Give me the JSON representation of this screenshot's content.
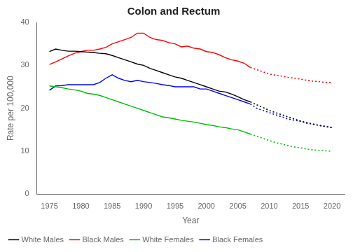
{
  "chart_data": {
    "type": "line",
    "title": "Colon and Rectum",
    "x_label": "Year",
    "y_label": "Rate per 100,000",
    "xlim": [
      1973,
      2022
    ],
    "ylim": [
      0,
      40
    ],
    "xticks": [
      1975,
      1980,
      1985,
      1990,
      1995,
      2000,
      2005,
      2010,
      2015,
      2020
    ],
    "yticks": [
      0,
      10,
      20,
      30,
      40
    ],
    "grid": false,
    "legend": "lower left",
    "series": [
      {
        "name": "White Males",
        "color": "#000000",
        "line_style": "solid",
        "x": [
          1975,
          1976,
          1977,
          1978,
          1979,
          1980,
          1981,
          1982,
          1983,
          1984,
          1985,
          1986,
          1987,
          1988,
          1989,
          1990,
          1991,
          1992,
          1993,
          1994,
          1995,
          1996,
          1997,
          1998,
          1999,
          2000,
          2001,
          2002,
          2003,
          2004,
          2005,
          2006,
          2007
        ],
        "values": [
          33.2,
          33.8,
          33.5,
          33.3,
          33.3,
          33.2,
          33.1,
          33.0,
          32.8,
          32.7,
          32.3,
          31.8,
          31.3,
          30.8,
          30.3,
          30.0,
          29.3,
          28.8,
          28.3,
          27.8,
          27.3,
          27.0,
          26.5,
          26.0,
          25.5,
          25.0,
          24.5,
          24.0,
          23.8,
          23.3,
          22.7,
          22.0,
          21.5
        ]
      },
      {
        "color": "#000000",
        "line_style": "dotted",
        "x": [
          2007,
          2008,
          2009,
          2010,
          2011,
          2012,
          2013,
          2014,
          2015,
          2016,
          2017,
          2018,
          2019,
          2020
        ],
        "values": [
          21.5,
          20.8,
          20.2,
          19.5,
          19.0,
          18.5,
          18.0,
          17.5,
          17.0,
          16.7,
          16.3,
          16.0,
          15.7,
          15.5
        ]
      },
      {
        "name": "Black Males",
        "color": "#FF0000",
        "line_style": "solid",
        "x": [
          1975,
          1976,
          1977,
          1978,
          1979,
          1980,
          1981,
          1982,
          1983,
          1984,
          1985,
          1986,
          1987,
          1988,
          1989,
          1990,
          1991,
          1992,
          1993,
          1994,
          1995,
          1996,
          1997,
          1998,
          1999,
          2000,
          2001,
          2002,
          2003,
          2004,
          2005,
          2006,
          2007
        ],
        "values": [
          30.2,
          30.8,
          31.5,
          32.2,
          32.8,
          33.2,
          33.5,
          33.5,
          33.8,
          34.2,
          35.0,
          35.5,
          36.0,
          36.5,
          37.5,
          37.5,
          36.5,
          36.0,
          35.8,
          35.3,
          35.0,
          34.3,
          34.5,
          34.0,
          33.8,
          33.2,
          33.0,
          32.5,
          31.8,
          31.3,
          31.0,
          30.5,
          29.5
        ]
      },
      {
        "color": "#FF0000",
        "line_style": "dotted",
        "x": [
          2007,
          2008,
          2009,
          2010,
          2011,
          2012,
          2013,
          2014,
          2015,
          2016,
          2017,
          2018,
          2019,
          2020
        ],
        "values": [
          29.5,
          29.0,
          28.5,
          28.0,
          27.7,
          27.5,
          27.2,
          27.0,
          26.8,
          26.5,
          26.3,
          26.2,
          26.0,
          26.0
        ]
      },
      {
        "name": "White Females",
        "color": "#00BB00",
        "line_style": "solid",
        "x": [
          1975,
          1976,
          1977,
          1978,
          1979,
          1980,
          1981,
          1982,
          1983,
          1984,
          1985,
          1986,
          1987,
          1988,
          1989,
          1990,
          1991,
          1992,
          1993,
          1994,
          1995,
          1996,
          1997,
          1998,
          1999,
          2000,
          2001,
          2002,
          2003,
          2004,
          2005,
          2006,
          2007
        ],
        "values": [
          25.2,
          25.0,
          24.8,
          24.5,
          24.3,
          24.0,
          23.5,
          23.3,
          23.0,
          22.5,
          22.0,
          21.5,
          21.0,
          20.5,
          20.0,
          19.5,
          19.0,
          18.5,
          18.0,
          17.8,
          17.5,
          17.2,
          17.0,
          16.8,
          16.5,
          16.2,
          16.0,
          15.7,
          15.5,
          15.2,
          15.0,
          14.5,
          14.0
        ]
      },
      {
        "color": "#00BB00",
        "line_style": "dotted",
        "x": [
          2007,
          2008,
          2009,
          2010,
          2011,
          2012,
          2013,
          2014,
          2015,
          2016,
          2017,
          2018,
          2019,
          2020
        ],
        "values": [
          14.0,
          13.5,
          13.0,
          12.5,
          12.0,
          11.7,
          11.3,
          11.0,
          10.8,
          10.5,
          10.3,
          10.2,
          10.1,
          10.0
        ]
      },
      {
        "name": "Black Females",
        "color": "#0000FF",
        "line_style": "solid",
        "x": [
          1975,
          1976,
          1977,
          1978,
          1979,
          1980,
          1981,
          1982,
          1983,
          1984,
          1985,
          1986,
          1987,
          1988,
          1989,
          1990,
          1991,
          1992,
          1993,
          1994,
          1995,
          1996,
          1997,
          1998,
          1999,
          2000,
          2001,
          2002,
          2003,
          2004,
          2005,
          2006,
          2007
        ],
        "values": [
          24.2,
          25.2,
          25.3,
          25.5,
          25.5,
          25.5,
          25.5,
          25.5,
          26.0,
          27.0,
          27.8,
          27.0,
          26.5,
          26.2,
          26.5,
          26.2,
          26.0,
          25.8,
          25.5,
          25.3,
          25.0,
          25.0,
          25.0,
          25.0,
          24.5,
          24.5,
          24.0,
          23.5,
          23.0,
          22.5,
          22.0,
          21.5,
          21.0
        ]
      },
      {
        "color": "#0000FF",
        "line_style": "dotted",
        "x": [
          2007,
          2008,
          2009,
          2010,
          2011,
          2012,
          2013,
          2014,
          2015,
          2016,
          2017,
          2018,
          2019,
          2020
        ],
        "values": [
          21.0,
          20.0,
          19.5,
          19.0,
          18.5,
          18.0,
          17.5,
          17.2,
          17.0,
          16.5,
          16.3,
          16.0,
          15.8,
          15.5
        ]
      }
    ]
  }
}
